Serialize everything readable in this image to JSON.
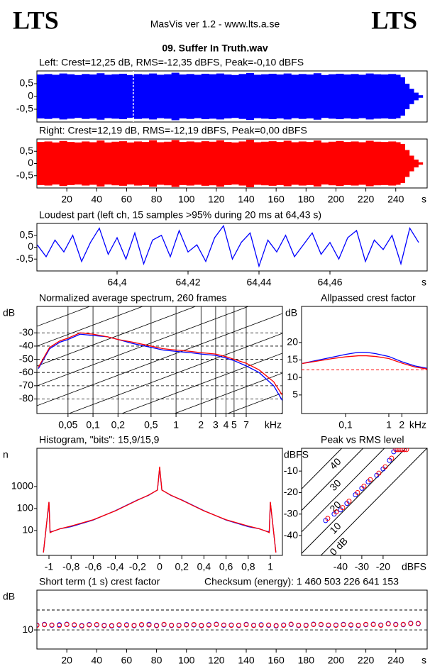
{
  "header": {
    "logo_left": "LTS",
    "app": "MasVis ver 1.2 - www.lts.a.se",
    "logo_right": "LTS",
    "file": "09. Suffer In Truth.wav"
  },
  "chart_data": [
    {
      "type": "waveform",
      "title": "Left: Crest=12,25 dB, RMS=-12,35 dBFS, Peak=-0,10 dBFS",
      "color": "#0000ff",
      "xlim": [
        0,
        261
      ],
      "ylim": [
        -1,
        1
      ],
      "yticks": [
        {
          "value": 0.5,
          "label": "0,5"
        },
        0,
        {
          "value": -0.5,
          "label": "-0,5"
        }
      ],
      "marker": 64.43,
      "x": [
        0,
        5,
        10,
        15,
        20,
        25,
        30,
        35,
        40,
        45,
        50,
        55,
        60,
        65,
        70,
        75,
        80,
        85,
        90,
        95,
        100,
        105,
        110,
        115,
        120,
        125,
        130,
        135,
        140,
        145,
        150,
        155,
        160,
        165,
        170,
        175,
        180,
        185,
        190,
        195,
        200,
        205,
        210,
        215,
        220,
        225,
        230,
        235,
        240,
        243,
        246,
        249,
        252,
        255
      ],
      "values": [
        0.86,
        0.88,
        0.85,
        0.9,
        0.87,
        0.84,
        0.88,
        0.86,
        0.91,
        0.85,
        0.87,
        0.89,
        0.84,
        0.88,
        0.86,
        0.9,
        0.85,
        0.87,
        0.93,
        0.86,
        0.88,
        0.85,
        0.89,
        0.87,
        0.9,
        0.86,
        0.84,
        0.88,
        0.92,
        0.85,
        0.87,
        0.89,
        0.86,
        0.9,
        0.85,
        0.88,
        0.86,
        0.91,
        0.84,
        0.87,
        0.89,
        0.86,
        0.88,
        0.85,
        0.9,
        0.87,
        0.86,
        0.88,
        0.85,
        0.75,
        0.5,
        0.3,
        0.15,
        0.05
      ]
    },
    {
      "type": "waveform",
      "title": "Right: Crest=12,19 dB, RMS=-12,19 dBFS, Peak=0,00 dBFS",
      "color": "#ff0000",
      "xlim": [
        0,
        261
      ],
      "ylim": [
        -1,
        1
      ],
      "yticks": [
        {
          "value": 0.5,
          "label": "0,5"
        },
        0,
        {
          "value": -0.5,
          "label": "-0,5"
        }
      ],
      "xticks": [
        20,
        40,
        60,
        80,
        100,
        120,
        140,
        160,
        180,
        200,
        220,
        240
      ],
      "xlabel": "s",
      "x": [
        0,
        5,
        10,
        15,
        20,
        25,
        30,
        35,
        40,
        45,
        50,
        55,
        60,
        65,
        70,
        75,
        80,
        85,
        90,
        95,
        100,
        105,
        110,
        115,
        120,
        125,
        130,
        135,
        140,
        145,
        150,
        155,
        160,
        165,
        170,
        175,
        180,
        185,
        190,
        195,
        200,
        205,
        210,
        215,
        220,
        225,
        230,
        235,
        240,
        243,
        246,
        249,
        252,
        255
      ],
      "values": [
        0.88,
        0.9,
        0.86,
        0.92,
        0.88,
        0.86,
        0.9,
        0.87,
        0.94,
        0.86,
        0.89,
        0.91,
        0.86,
        0.9,
        0.88,
        0.95,
        0.87,
        0.89,
        0.96,
        0.88,
        0.9,
        0.87,
        0.91,
        0.89,
        0.95,
        0.88,
        0.86,
        0.9,
        0.97,
        0.87,
        0.89,
        0.91,
        0.88,
        0.93,
        0.87,
        0.9,
        0.88,
        0.94,
        0.86,
        0.89,
        0.92,
        0.88,
        0.9,
        0.87,
        0.93,
        0.89,
        0.88,
        0.9,
        0.87,
        0.8,
        0.55,
        0.32,
        0.16,
        0.05
      ]
    },
    {
      "type": "line",
      "title": "Loudest part (left  ch, 15 samples >95% during 20 ms at 64,43 s)",
      "xlim": [
        64.3774,
        64.4874
      ],
      "ylim": [
        -1,
        1
      ],
      "yticks": [
        {
          "value": 0.5,
          "label": "0,5"
        },
        0,
        {
          "value": -0.5,
          "label": "-0,5"
        }
      ],
      "xticks": [
        {
          "value": 64.4,
          "label": "64,4"
        },
        {
          "value": 64.42,
          "label": "64,42"
        },
        {
          "value": 64.44,
          "label": "64,44"
        },
        {
          "value": 64.46,
          "label": "64,46"
        }
      ],
      "xlabel": "s",
      "x": [
        64.3775,
        64.38,
        64.3825,
        64.385,
        64.3875,
        64.39,
        64.3925,
        64.395,
        64.3975,
        64.4,
        64.4025,
        64.405,
        64.4075,
        64.41,
        64.4125,
        64.415,
        64.4175,
        64.42,
        64.4225,
        64.425,
        64.4275,
        64.43,
        64.4325,
        64.435,
        64.4375,
        64.44,
        64.4425,
        64.445,
        64.4475,
        64.45,
        64.4525,
        64.455,
        64.4575,
        64.46,
        64.4625,
        64.465,
        64.4675,
        64.47,
        64.4725,
        64.475,
        64.4775,
        64.48,
        64.4825,
        64.485
      ],
      "series": [
        {
          "color": "#0000ff",
          "values": [
            0.1,
            -0.4,
            0.3,
            -0.2,
            0.5,
            -0.6,
            0.2,
            0.8,
            -0.3,
            0.4,
            -0.5,
            0.6,
            -0.7,
            0.3,
            0.5,
            -0.4,
            0.7,
            -0.2,
            0.1,
            -0.6,
            0.4,
            0.9,
            -0.5,
            0.2,
            0.6,
            -0.8,
            0.3,
            -0.2,
            0.5,
            -0.4,
            0.1,
            0.6,
            -0.3,
            0.2,
            -0.5,
            0.4,
            0.7,
            -0.6,
            0.3,
            -0.1,
            0.5,
            -0.7,
            0.8,
            0.2
          ]
        }
      ]
    },
    {
      "type": "line",
      "title": "Normalized average spectrum, 260 frames",
      "ylabel": "dB",
      "xlabel": "kHz",
      "xlog": true,
      "grid": true,
      "xlim": [
        0.0211,
        19.1
      ],
      "ylim": [
        -91,
        -10
      ],
      "yticks": [
        -30,
        -40,
        -50,
        -60,
        -70,
        -80
      ],
      "xticks": [
        {
          "value": 0.05,
          "label": "0,05"
        },
        {
          "value": 0.1,
          "label": "0,1"
        },
        {
          "value": 0.2,
          "label": "0,2"
        },
        {
          "value": 0.5,
          "label": "0,5"
        },
        1,
        2,
        3,
        4,
        5,
        7
      ],
      "x": [
        0.022,
        0.03,
        0.04,
        0.05,
        0.07,
        0.1,
        0.15,
        0.2,
        0.3,
        0.5,
        0.7,
        1,
        1.5,
        2,
        3,
        4,
        5,
        7,
        10,
        15,
        19
      ],
      "series": [
        {
          "color": "#0000ff",
          "values": [
            -57,
            -42,
            -37,
            -35,
            -31,
            -32,
            -33,
            -35,
            -38,
            -41,
            -43,
            -44,
            -45,
            -46,
            -47,
            -49,
            -51,
            -55,
            -60,
            -70,
            -81
          ]
        },
        {
          "color": "#ff0000",
          "values": [
            -56,
            -41,
            -36,
            -34,
            -30,
            -31,
            -33,
            -35,
            -37,
            -40,
            -42,
            -43,
            -44,
            -45,
            -46,
            -48,
            -50,
            -53,
            -58,
            -67,
            -77
          ]
        }
      ]
    },
    {
      "type": "line",
      "title": "Allpassed crest factor",
      "ylabel": "dB",
      "xlabel": "kHz",
      "xlog": true,
      "xlim": [
        0.0096,
        7.7
      ],
      "ylim": [
        -0.3,
        30.3
      ],
      "yticks": [
        20,
        15,
        10,
        5
      ],
      "xticks": [
        {
          "value": 0.1,
          "label": "0,1"
        },
        1,
        2
      ],
      "hlines": [
        12.2
      ],
      "hline_color": "#ff0000",
      "x": [
        0.01,
        0.02,
        0.05,
        0.1,
        0.2,
        0.3,
        0.5,
        1,
        2,
        4,
        7.7
      ],
      "series": [
        {
          "color": "#0000ff",
          "values": [
            14,
            14.8,
            15.8,
            16.6,
            17.2,
            17.2,
            16.8,
            16,
            14.5,
            13.3,
            12.6
          ]
        },
        {
          "color": "#ff0000",
          "values": [
            14,
            14.6,
            15.4,
            15.9,
            16.2,
            16.2,
            16,
            15.4,
            14.1,
            13,
            12.4
          ]
        }
      ]
    },
    {
      "type": "line",
      "title": "Histogram, \"bits\": 15,9/15,9",
      "ylabel": "n",
      "ylog": true,
      "xlim": [
        -1.109,
        1.109
      ],
      "ylim": [
        0.74,
        55000
      ],
      "yticks": [
        1000,
        100,
        10
      ],
      "xticks": [
        -1,
        {
          "value": -0.8,
          "label": "-0,8"
        },
        {
          "value": -0.6,
          "label": "-0,6"
        },
        {
          "value": -0.4,
          "label": "-0,4"
        },
        {
          "value": -0.2,
          "label": "-0,2"
        },
        0,
        {
          "value": 0.2,
          "label": "0,2"
        },
        {
          "value": 0.4,
          "label": "0,4"
        },
        {
          "value": 0.6,
          "label": "0,6"
        },
        {
          "value": 0.8,
          "label": "0,8"
        },
        1
      ],
      "x": [
        -1.05,
        -1,
        -0.99,
        -0.97,
        -0.9,
        -0.8,
        -0.6,
        -0.4,
        -0.2,
        -0.1,
        -0.02,
        0,
        0.02,
        0.1,
        0.2,
        0.4,
        0.6,
        0.8,
        0.9,
        0.97,
        0.99,
        1,
        1.05
      ],
      "series": [
        {
          "color": "#0000ff",
          "values": [
            1,
            190,
            9,
            9,
            12,
            15,
            30,
            80,
            245,
            400,
            700,
            7000,
            700,
            400,
            245,
            80,
            30,
            15,
            12,
            9,
            9,
            190,
            1
          ]
        },
        {
          "color": "#ff0000",
          "values": [
            1,
            200,
            8,
            9,
            12,
            16,
            31,
            78,
            240,
            410,
            690,
            8000,
            690,
            410,
            240,
            78,
            31,
            16,
            12,
            9,
            8,
            200,
            1
          ]
        }
      ]
    },
    {
      "type": "scatter",
      "title": "Peak vs RMS level",
      "ylabel": "dBFS",
      "xlabel": "dBFS",
      "xlim": [
        -58.3,
        0.7
      ],
      "ylim": [
        -49.2,
        0.6
      ],
      "yticks": [
        -10,
        -20,
        -30,
        -40
      ],
      "xticks": [
        -40,
        -30,
        -20
      ],
      "crest_lines": [
        40,
        30,
        20,
        10,
        {
          "value": 0,
          "label": "0 dB"
        }
      ],
      "series": [
        {
          "color": "#0000ff",
          "x": [
            -47,
            -43,
            -40,
            -37,
            -33,
            -30,
            -27,
            -23,
            -20,
            -17,
            -15,
            -14,
            -13,
            -12,
            -11,
            -10
          ],
          "values": [
            -33,
            -30,
            -28,
            -25,
            -21,
            -18,
            -15,
            -12,
            -9,
            -5,
            -1,
            0,
            0,
            0,
            0,
            0
          ]
        },
        {
          "color": "#ff0000",
          "x": [
            -46,
            -42,
            -39,
            -36,
            -32,
            -29,
            -26,
            -22,
            -19,
            -16,
            -14,
            -13,
            -12,
            -11,
            -10,
            -9
          ],
          "values": [
            -32,
            -29,
            -27,
            -24,
            -20,
            -17,
            -14,
            -11,
            -8,
            -4,
            0,
            0,
            0,
            0,
            0,
            0
          ]
        }
      ]
    },
    {
      "type": "scatter",
      "title": "Short term (1 s) crest factor",
      "annotation": "Checksum (energy):  1 460 503 226 641 153",
      "ylabel": "dB",
      "xlabel": "s",
      "grid": true,
      "xlim": [
        0,
        261
      ],
      "ylim": [
        0.4,
        30
      ],
      "yticks": [
        10
      ],
      "hlines": [
        20
      ],
      "xticks": [
        20,
        40,
        60,
        80,
        100,
        120,
        140,
        160,
        180,
        200,
        220,
        240
      ],
      "x": [
        0,
        5,
        10,
        15,
        20,
        25,
        30,
        35,
        40,
        45,
        50,
        55,
        60,
        65,
        70,
        75,
        80,
        85,
        90,
        95,
        100,
        105,
        110,
        115,
        120,
        125,
        130,
        135,
        140,
        145,
        150,
        155,
        160,
        165,
        170,
        175,
        180,
        185,
        190,
        195,
        200,
        205,
        210,
        215,
        220,
        225,
        230,
        235,
        240,
        245,
        250,
        255
      ],
      "series": [
        {
          "color": "#0000ff",
          "values": [
            12.5,
            12.8,
            12.3,
            12.6,
            12.9,
            12.4,
            12.2,
            12.7,
            12.5,
            12.3,
            12.0,
            12.4,
            12.6,
            12.1,
            12.5,
            12.8,
            12.3,
            12.6,
            12.2,
            12.4,
            12.7,
            12.5,
            12.1,
            12.6,
            12.9,
            12.3,
            12.5,
            12.2,
            12.8,
            12.4,
            12.6,
            12.3,
            12.0,
            12.5,
            12.7,
            12.2,
            12.4,
            12.9,
            12.6,
            12.3,
            12.5,
            12.8,
            12.4,
            12.2,
            12.6,
            12.9,
            12.5,
            13.2,
            12.8,
            12.6,
            13.4,
            13.1
          ]
        },
        {
          "color": "#ff0000",
          "values": [
            12.3,
            12.6,
            12.5,
            12.2,
            12.7,
            12.6,
            12.0,
            12.5,
            12.7,
            12.1,
            12.2,
            12.6,
            12.4,
            12.3,
            12.7,
            12.5,
            12.1,
            12.8,
            12.4,
            12.2,
            12.5,
            12.7,
            12.3,
            12.4,
            12.7,
            12.5,
            12.3,
            12.4,
            12.6,
            12.2,
            12.4,
            12.5,
            12.2,
            12.3,
            12.9,
            12.4,
            12.2,
            12.7,
            12.8,
            12.5,
            12.3,
            12.6,
            12.6,
            12.4,
            12.8,
            12.7,
            12.3,
            13.0,
            12.6,
            12.8,
            13.2,
            13.3
          ]
        }
      ]
    }
  ]
}
